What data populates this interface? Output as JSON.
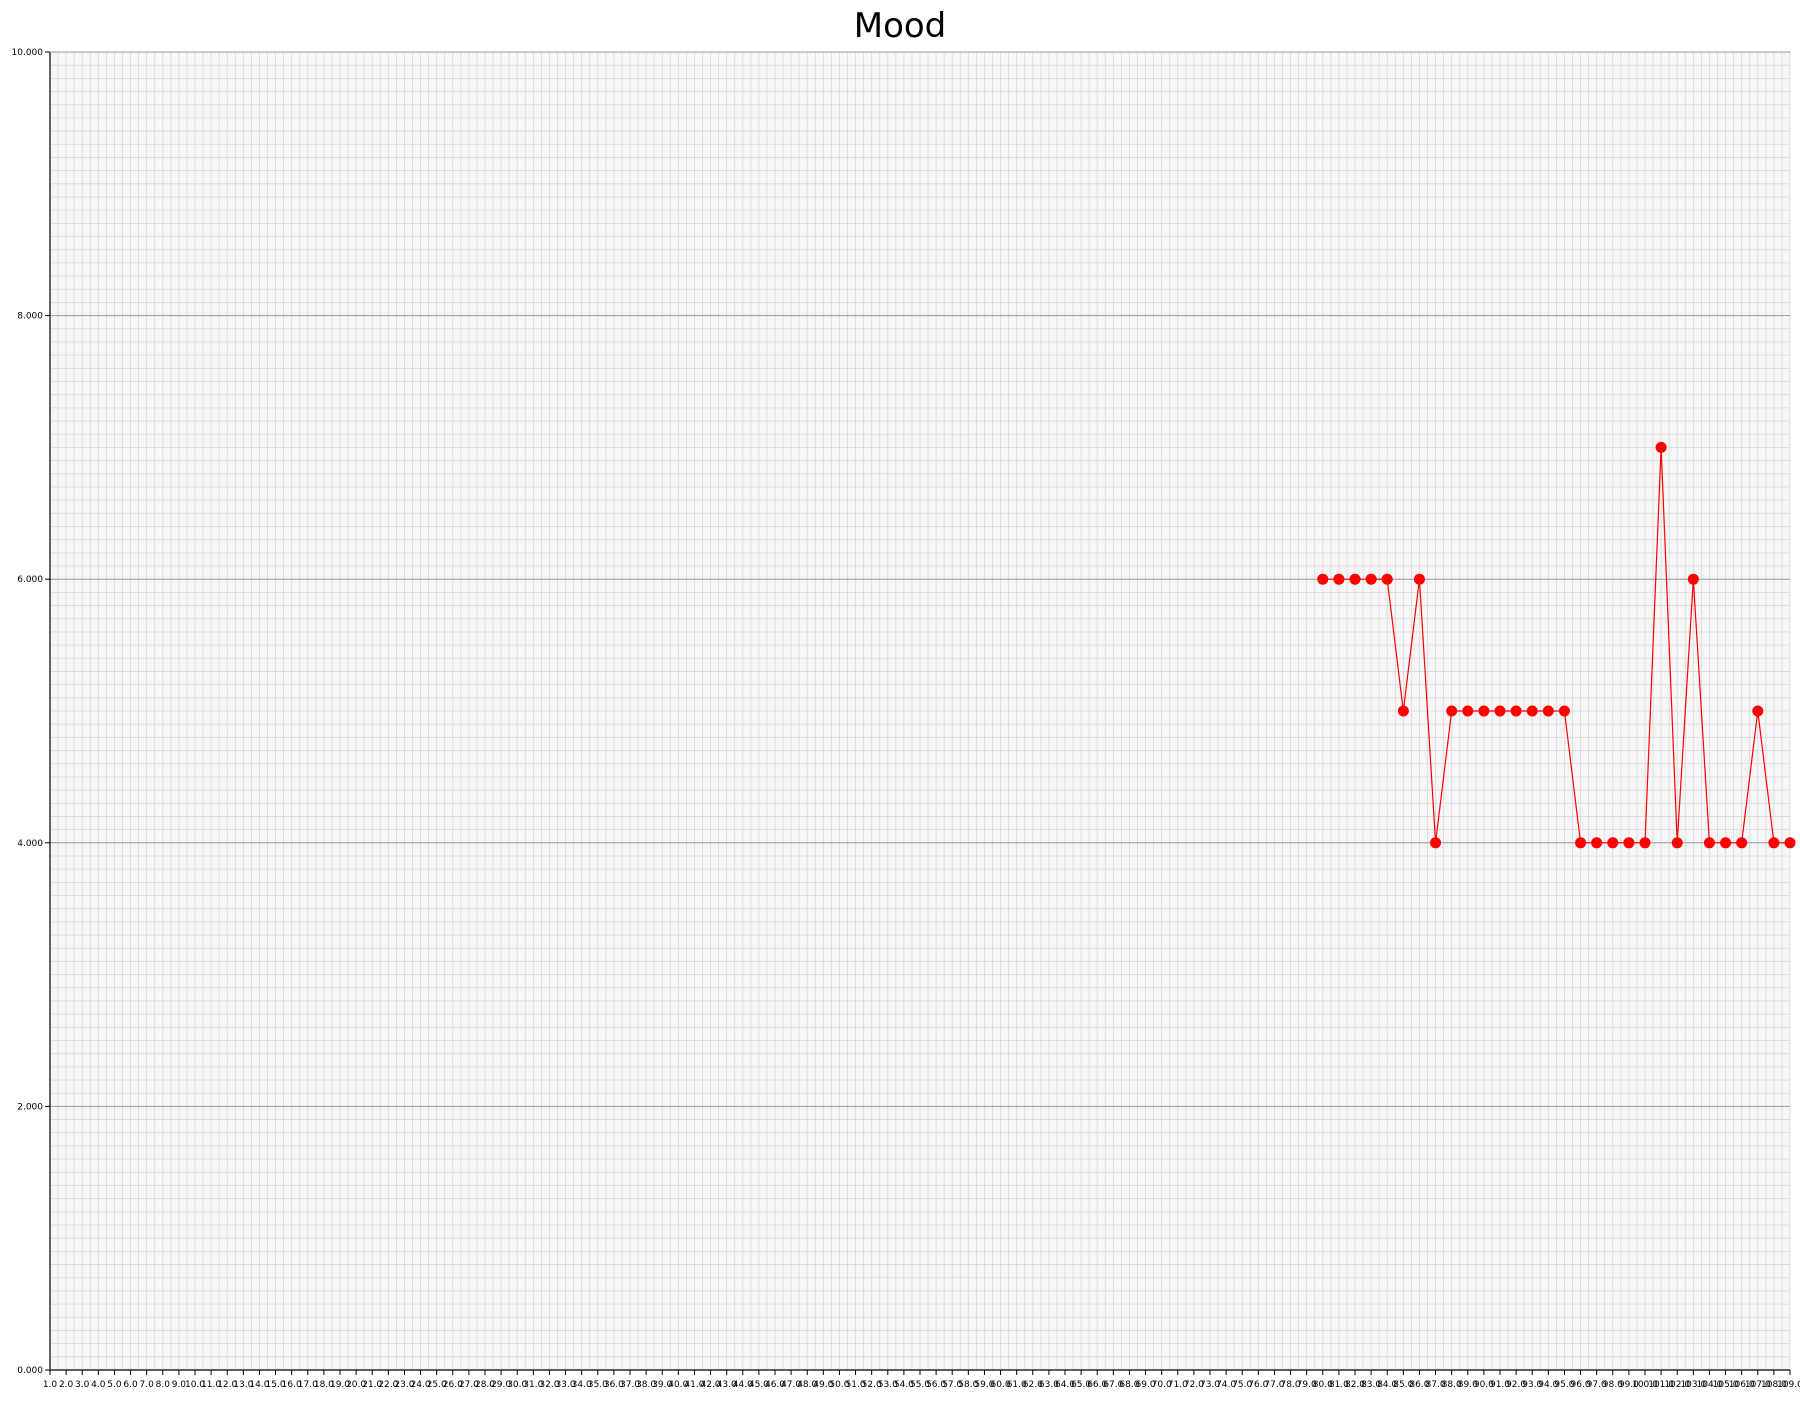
{
  "chart_data": {
    "type": "line",
    "title": "Mood",
    "xlabel": "",
    "ylabel": "",
    "ylim": [
      0,
      10
    ],
    "xlim": [
      1,
      109
    ],
    "grid": true,
    "y_ticks": [
      "0.000",
      "2.000",
      "4.000",
      "6.000",
      "8.000",
      "10.000"
    ],
    "x_ticks": [
      "1.0",
      "2.0",
      "3.0",
      "4.0",
      "5.0",
      "6.0",
      "7.0",
      "8.0",
      "9.0",
      "10.0",
      "11.0",
      "12.0",
      "13.0",
      "14.0",
      "15.0",
      "16.0",
      "17.0",
      "18.0",
      "19.0",
      "20.0",
      "21.0",
      "22.0",
      "23.0",
      "24.0",
      "25.0",
      "26.0",
      "27.0",
      "28.0",
      "29.0",
      "30.0",
      "31.0",
      "32.0",
      "33.0",
      "34.0",
      "35.0",
      "36.0",
      "37.0",
      "38.0",
      "39.0",
      "40.0",
      "41.0",
      "42.0",
      "43.0",
      "44.0",
      "45.0",
      "46.0",
      "47.0",
      "48.0",
      "49.0",
      "50.0",
      "51.0",
      "52.0",
      "53.0",
      "54.0",
      "55.0",
      "56.0",
      "57.0",
      "58.0",
      "59.0",
      "60.0",
      "61.0",
      "62.0",
      "63.0",
      "64.0",
      "65.0",
      "66.0",
      "67.0",
      "68.0",
      "69.0",
      "70.0",
      "71.0",
      "72.0",
      "73.0",
      "74.0",
      "75.0",
      "76.0",
      "77.0",
      "78.0",
      "79.0",
      "80.0",
      "81.0",
      "82.0",
      "83.0",
      "84.0",
      "85.0",
      "86.0",
      "87.0",
      "88.0",
      "89.0",
      "90.0",
      "91.0",
      "92.0",
      "93.0",
      "94.0",
      "95.0",
      "96.0",
      "97.0",
      "98.0",
      "99.0",
      "100.0",
      "101.0",
      "102.0",
      "103.0",
      "104.0",
      "105.0",
      "106.0",
      "107.0",
      "108.0",
      "109.0"
    ],
    "series": [
      {
        "color": "#ff0000",
        "x": [
          80,
          81,
          82,
          83,
          84,
          85,
          86,
          87,
          88,
          89,
          90,
          91,
          92,
          93,
          94,
          95,
          96,
          97,
          98,
          99,
          100,
          101,
          102,
          103,
          104,
          105,
          106,
          107,
          108,
          109
        ],
        "y": [
          6,
          6,
          6,
          6,
          6,
          5,
          6,
          4,
          5,
          5,
          5,
          5,
          5,
          5,
          5,
          5,
          4,
          4,
          4,
          4,
          4,
          7,
          4,
          6,
          4,
          4,
          4,
          5,
          4,
          4
        ]
      }
    ]
  }
}
